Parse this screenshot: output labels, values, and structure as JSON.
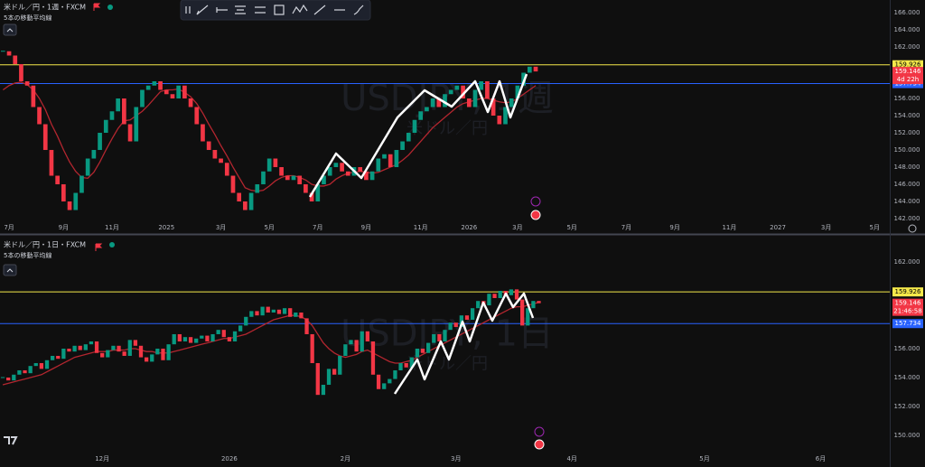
{
  "chart_data": [
    {
      "type": "candlestick",
      "title": "米ドル／円・1週・FXCM",
      "watermark": "USDJPY, 1週",
      "watermark_sub": "米ドル／円",
      "up_color": "#089981",
      "down_color": "#f23645",
      "countdown": "4d 22h",
      "ylim": [
        140.32,
        167.47
      ],
      "yticks": [
        {
          "value": 142,
          "label": "142.000"
        },
        {
          "value": 144,
          "label": "144.000"
        },
        {
          "value": 146,
          "label": "146.000"
        },
        {
          "value": 148,
          "label": "148.000"
        },
        {
          "value": 150,
          "label": "150.000"
        },
        {
          "value": 152,
          "label": "152.000"
        },
        {
          "value": 154,
          "label": "154.000"
        },
        {
          "value": 156,
          "label": "156.000"
        },
        {
          "value": 162,
          "label": "162.000"
        },
        {
          "value": 164,
          "label": "164.000"
        },
        {
          "value": 166,
          "label": "166.000"
        }
      ],
      "hlines": [
        {
          "value": 159.926,
          "color": "#f5e94a"
        },
        {
          "value": 157.734,
          "color": "#2962ff"
        }
      ],
      "categories": [
        null,
        "7月",
        null,
        null,
        null,
        null,
        null,
        null,
        null,
        null,
        "9月",
        null,
        null,
        null,
        null,
        null,
        null,
        null,
        "11月",
        null,
        null,
        null,
        null,
        null,
        null,
        null,
        null,
        "2025",
        null,
        null,
        null,
        null,
        null,
        null,
        null,
        null,
        "3月",
        null,
        null,
        null,
        null,
        null,
        null,
        null,
        "5月",
        null,
        null,
        null,
        null,
        null,
        null,
        null,
        "7月",
        null,
        null,
        null,
        null,
        null,
        null,
        null,
        "9月",
        null,
        null,
        null,
        null,
        null,
        null,
        null,
        null,
        "11月",
        null,
        null,
        null,
        null,
        null,
        null,
        null,
        "2026",
        null,
        null,
        null,
        null,
        null,
        null,
        null,
        "3月",
        null,
        null,
        null,
        null,
        null,
        null,
        null,
        null,
        "5月",
        null,
        null,
        null,
        null,
        null,
        null,
        null,
        null,
        "7月",
        null,
        null,
        null,
        null,
        null,
        null,
        null,
        "9月",
        null,
        null,
        null,
        null,
        null,
        null,
        null,
        null,
        "11月",
        null,
        null,
        null,
        null,
        null,
        null,
        null,
        "2027",
        null,
        null,
        null,
        null,
        null,
        null,
        null,
        "3月",
        null,
        null,
        null,
        null,
        null,
        null,
        null,
        "5月",
        null,
        null
      ],
      "values": [
        161.5,
        161,
        160,
        158,
        157.5,
        155,
        153,
        150,
        147,
        146,
        144,
        143,
        145,
        147,
        149,
        150,
        152,
        153.5,
        154.5,
        156,
        153,
        151,
        155,
        157,
        157.5,
        158,
        157,
        156.5,
        156,
        157.5,
        156,
        155,
        153,
        151,
        150,
        149,
        148.5,
        147,
        145,
        144,
        143,
        145,
        146,
        147.5,
        149,
        148,
        147,
        146.5,
        147,
        146,
        145,
        144,
        146,
        147,
        148,
        148.5,
        147.5,
        147,
        148,
        147.5,
        146.5,
        147.5,
        149,
        149.5,
        148,
        150,
        151,
        152,
        153.5,
        154.5,
        155,
        156,
        155,
        156.5,
        157,
        157.5,
        156,
        155,
        157,
        158,
        156,
        154,
        153,
        155,
        156,
        157.5,
        159,
        159.7,
        159.146,
        null,
        null,
        null,
        null,
        null,
        null,
        null,
        null,
        null,
        null,
        null,
        null,
        null,
        null,
        null,
        null,
        null,
        null,
        null,
        null,
        null,
        null,
        null,
        null,
        null,
        null,
        null,
        null,
        null,
        null,
        null,
        null,
        null,
        null,
        null,
        null,
        null,
        null,
        null,
        null,
        null,
        null,
        null,
        null,
        null,
        null,
        null,
        null,
        null,
        null,
        null,
        null,
        null,
        null,
        null,
        null,
        null,
        null
      ],
      "series": [
        {
          "name": "5本の移動平均線",
          "color": "#b3262f",
          "values": [
            157,
            157.5,
            157.8,
            157.9,
            157.6,
            157,
            156,
            154.7,
            153,
            151.6,
            150,
            148.6,
            147.5,
            146.8,
            146.7,
            147.4,
            148.6,
            150,
            151.3,
            152.5,
            153.4,
            153.5,
            154,
            154.5,
            155.2,
            156,
            156.8,
            157,
            157,
            157.1,
            156.7,
            156.2,
            155.4,
            154.3,
            153,
            151.8,
            150.5,
            149.3,
            148,
            146.8,
            145.6,
            145.3,
            145.2,
            145.3,
            145.8,
            146.4,
            146.8,
            147,
            147,
            146.8,
            146.5,
            146,
            145.8,
            145.8,
            146,
            146.6,
            147,
            147.3,
            147.4,
            147.5,
            147.4,
            147.3,
            147.4,
            147.7,
            148,
            148.3,
            148.8,
            149.4,
            150.2,
            151,
            151.8,
            152.6,
            153.2,
            153.8,
            154.4,
            155,
            155.4,
            155.6,
            155.8,
            156,
            156,
            155.8,
            155.6,
            155.5,
            155.6,
            156,
            156.5,
            157,
            157.5,
            null,
            null,
            null,
            null,
            null,
            null,
            null,
            null,
            null,
            null,
            null,
            null,
            null,
            null,
            null,
            null,
            null,
            null,
            null,
            null,
            null,
            null,
            null,
            null,
            null,
            null,
            null,
            null,
            null,
            null,
            null,
            null,
            null,
            null,
            null,
            null,
            null,
            null,
            null,
            null,
            null,
            null,
            null,
            null,
            null,
            null,
            null,
            null,
            null,
            null,
            null,
            null,
            null,
            null,
            null,
            null,
            null,
            null
          ]
        }
      ]
    },
    {
      "type": "candlestick",
      "title": "米ドル／円・1日・FXCM",
      "watermark": "USDJPY, 1日",
      "watermark_sub": "米ドル／円",
      "up_color": "#089981",
      "down_color": "#f23645",
      "countdown": "21:46:58",
      "ylim": [
        147.81,
        163.75
      ],
      "yticks": [
        {
          "value": 150,
          "label": "150.000"
        },
        {
          "value": 152,
          "label": "152.000"
        },
        {
          "value": 154,
          "label": "154.000"
        },
        {
          "value": 156,
          "label": "156.000"
        },
        {
          "value": 162,
          "label": "162.000"
        }
      ],
      "hlines": [
        {
          "value": 159.926,
          "color": "#f5e94a"
        },
        {
          "value": 157.734,
          "color": "#2962ff"
        }
      ],
      "categories": [
        null,
        null,
        null,
        null,
        null,
        null,
        null,
        null,
        null,
        null,
        null,
        null,
        null,
        null,
        null,
        null,
        null,
        null,
        "12月",
        null,
        null,
        null,
        null,
        null,
        null,
        null,
        null,
        null,
        null,
        null,
        null,
        null,
        null,
        null,
        null,
        null,
        null,
        null,
        null,
        null,
        null,
        "2026",
        null,
        null,
        null,
        null,
        null,
        null,
        null,
        null,
        null,
        null,
        null,
        null,
        null,
        null,
        null,
        null,
        null,
        null,
        null,
        null,
        "2月",
        null,
        null,
        null,
        null,
        null,
        null,
        null,
        null,
        null,
        null,
        null,
        null,
        null,
        null,
        null,
        null,
        null,
        null,
        null,
        "3月",
        null,
        null,
        null,
        null,
        null,
        null,
        null,
        null,
        null,
        null,
        null,
        null,
        null,
        null,
        null,
        null,
        null,
        null,
        null,
        null,
        "4月",
        null,
        null,
        null,
        null,
        null,
        null,
        null,
        null,
        null,
        null,
        null,
        null,
        null,
        null,
        null,
        null,
        null,
        null,
        null,
        null,
        null,
        null,
        null,
        "5月",
        null,
        null,
        null,
        null,
        null,
        null,
        null,
        null,
        null,
        null,
        null,
        null,
        null,
        null,
        null,
        null,
        null,
        null,
        null,
        null,
        "6月",
        null,
        null,
        null,
        null,
        null,
        null,
        null,
        null,
        null,
        null,
        null,
        null
      ],
      "values": [
        154,
        153.8,
        154.2,
        154.5,
        154.3,
        154.8,
        155,
        154.6,
        155.2,
        155.5,
        155.3,
        156,
        155.8,
        156.2,
        155.9,
        156.3,
        156.5,
        155.7,
        155.4,
        155.9,
        156.2,
        155.8,
        155.5,
        156.6,
        156.2,
        155.4,
        155.1,
        155.6,
        156,
        155.2,
        156.3,
        157,
        156.5,
        156.8,
        156.4,
        156.7,
        156.9,
        156.5,
        157,
        157.3,
        156.8,
        156.5,
        157.2,
        157.6,
        158.2,
        158.6,
        158.3,
        158.9,
        158.5,
        158.7,
        158.4,
        158.8,
        158.2,
        158.5,
        158.1,
        157,
        155,
        152.8,
        153.5,
        154.6,
        154.2,
        155.5,
        156.3,
        156.6,
        155.8,
        157.2,
        156.5,
        154.2,
        153.2,
        153.6,
        153.9,
        154.5,
        155,
        154.7,
        155.4,
        156,
        155.7,
        156.4,
        157,
        156.5,
        157.3,
        157.8,
        157.5,
        158.3,
        158,
        158.8,
        159.3,
        159,
        159.8,
        159.5,
        160,
        159.7,
        160.1,
        159.4,
        157.6,
        158.8,
        159.3,
        159.146,
        null,
        null,
        null,
        null,
        null,
        null,
        null,
        null,
        null,
        null,
        null,
        null,
        null,
        null,
        null,
        null,
        null,
        null,
        null,
        null,
        null,
        null,
        null,
        null,
        null,
        null,
        null,
        null,
        null,
        null,
        null,
        null,
        null,
        null,
        null,
        null,
        null,
        null,
        null,
        null,
        null,
        null,
        null,
        null,
        null,
        null,
        null,
        null,
        null,
        null,
        null,
        null,
        null,
        null,
        null,
        null,
        null,
        null,
        null,
        null,
        null,
        null,
        null
      ],
      "series": [
        {
          "name": "5本の移動平均線",
          "color": "#b3262f",
          "values": [
            153.5,
            153.6,
            153.7,
            153.8,
            153.9,
            154,
            154.1,
            154.2,
            154.4,
            154.6,
            154.8,
            155,
            155.2,
            155.4,
            155.5,
            155.6,
            155.7,
            155.8,
            155.8,
            155.8,
            155.9,
            155.9,
            155.9,
            156,
            156,
            155.9,
            155.8,
            155.8,
            155.7,
            155.7,
            155.7,
            155.8,
            155.9,
            156,
            156.1,
            156.2,
            156.3,
            156.4,
            156.5,
            156.6,
            156.7,
            156.7,
            156.8,
            156.9,
            157,
            157.2,
            157.4,
            157.6,
            157.8,
            158,
            158.1,
            158.2,
            158.3,
            158.3,
            158.2,
            158,
            157.6,
            157,
            156.4,
            156,
            155.7,
            155.5,
            155.4,
            155.5,
            155.6,
            155.8,
            155.9,
            155.7,
            155.5,
            155.3,
            155.1,
            155,
            155,
            155.1,
            155.2,
            155.4,
            155.6,
            155.8,
            156,
            156.2,
            156.4,
            156.6,
            156.8,
            157,
            157.2,
            157.4,
            157.6,
            157.8,
            158,
            158.2,
            158.4,
            158.6,
            158.8,
            158.9,
            158.9,
            159,
            159.1,
            159.2,
            null,
            null,
            null,
            null,
            null,
            null,
            null,
            null,
            null,
            null,
            null,
            null,
            null,
            null,
            null,
            null,
            null,
            null,
            null,
            null,
            null,
            null,
            null,
            null,
            null,
            null,
            null,
            null,
            null,
            null,
            null,
            null,
            null,
            null,
            null,
            null,
            null,
            null,
            null,
            null,
            null,
            null,
            null,
            null,
            null,
            null,
            null,
            null,
            null,
            null,
            null,
            null,
            null,
            null,
            null,
            null,
            null,
            null,
            null,
            null,
            null,
            null,
            null
          ]
        }
      ]
    }
  ]
}
